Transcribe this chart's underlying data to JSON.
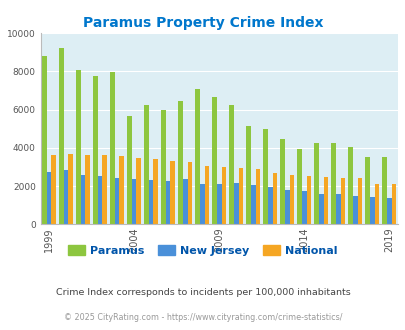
{
  "title": "Paramus Property Crime Index",
  "title_color": "#0077cc",
  "background_color": "#ddeef4",
  "years": [
    1999,
    2000,
    2001,
    2002,
    2003,
    2004,
    2005,
    2006,
    2007,
    2008,
    2009,
    2010,
    2011,
    2012,
    2013,
    2014,
    2015,
    2016,
    2017,
    2018,
    2019
  ],
  "paramus": [
    8800,
    9200,
    8050,
    7750,
    7950,
    5650,
    6250,
    6000,
    6450,
    7100,
    6650,
    6250,
    5150,
    5000,
    4450,
    3950,
    4250,
    4250,
    4050,
    3500,
    3500
  ],
  "nj": [
    2750,
    2850,
    2600,
    2550,
    2450,
    2350,
    2300,
    2250,
    2350,
    2100,
    2100,
    2150,
    2050,
    1950,
    1800,
    1750,
    1600,
    1600,
    1500,
    1450,
    1400
  ],
  "national": [
    3650,
    3700,
    3650,
    3600,
    3550,
    3450,
    3400,
    3300,
    3250,
    3050,
    3000,
    2950,
    2900,
    2700,
    2600,
    2550,
    2500,
    2450,
    2400,
    2100,
    2100
  ],
  "paramus_color": "#8dc63f",
  "nj_color": "#4a90d9",
  "national_color": "#f5a623",
  "xtick_years": [
    1999,
    2004,
    2009,
    2014,
    2019
  ],
  "subtitle": "Crime Index corresponds to incidents per 100,000 inhabitants",
  "footer": "© 2025 CityRating.com - https://www.cityrating.com/crime-statistics/",
  "subtitle_color": "#444444",
  "footer_color": "#999999",
  "legend_color": "#0055aa"
}
